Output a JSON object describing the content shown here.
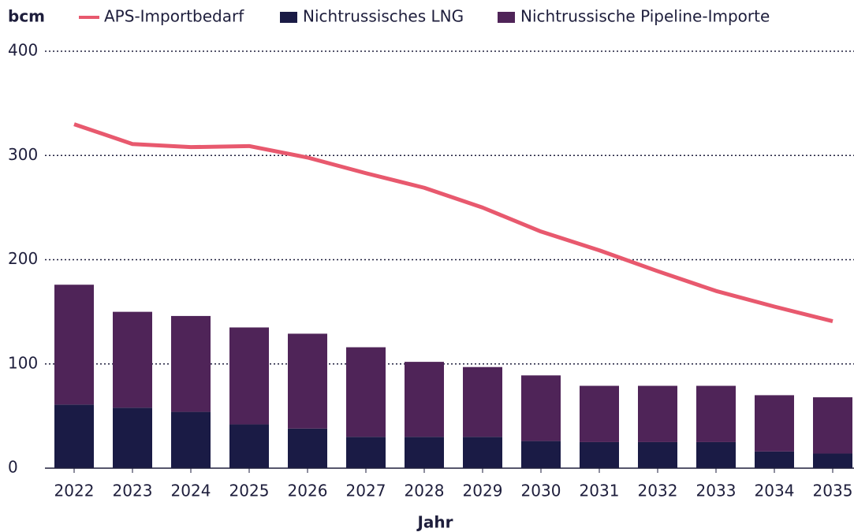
{
  "chart_data": {
    "type": "bar",
    "stacked": true,
    "y_label": "bcm",
    "x_label": "Jahr",
    "categories": [
      "2022",
      "2023",
      "2024",
      "2025",
      "2026",
      "2027",
      "2028",
      "2029",
      "2030",
      "2031",
      "2032",
      "2033",
      "2034",
      "2035"
    ],
    "series": [
      {
        "name": "APS-Importbedarf",
        "type": "line",
        "color": "#e8596e",
        "values": [
          330,
          311,
          308,
          309,
          298,
          283,
          269,
          250,
          227,
          209,
          189,
          170,
          155,
          141
        ]
      },
      {
        "name": "Nichtrussisches LNG",
        "type": "bar",
        "color": "#1a1b45",
        "values": [
          61,
          58,
          54,
          42,
          38,
          30,
          30,
          30,
          26,
          25,
          25,
          25,
          16,
          14
        ]
      },
      {
        "name": "Nichtrussische Pipeline-Importe",
        "type": "bar",
        "color": "#4f2458",
        "values": [
          115,
          92,
          92,
          93,
          91,
          86,
          72,
          67,
          63,
          54,
          54,
          54,
          54,
          54
        ]
      }
    ],
    "ylim": [
      0,
      400
    ],
    "yticks": [
      0,
      100,
      200,
      300,
      400
    ],
    "grid": true
  }
}
